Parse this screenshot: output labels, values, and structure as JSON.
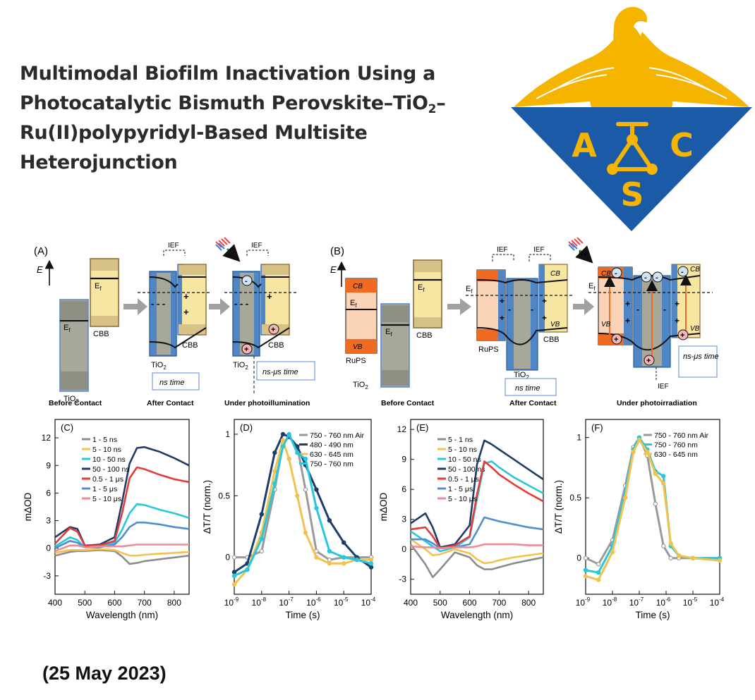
{
  "header": {
    "title_lines": [
      "Multimodal Biofilm Inactivation Using a",
      "Photocatalytic Bismuth Perovskite–TiO",
      "Ru(II)polypyridyl-Based Multisite",
      "Heterojunction"
    ],
    "title_sub": "2",
    "title_tail": "–",
    "date": "(25 May 2023)"
  },
  "logo": {
    "letters": [
      "A",
      "C",
      "S"
    ],
    "colors": {
      "gold": "#F5B400",
      "blue": "#1B5AA6"
    }
  },
  "schemes": {
    "A": {
      "label": "(A)",
      "axis": "E",
      "ef": "E",
      "ef_sub": "f",
      "iefs": [
        "IEF",
        "IEF"
      ],
      "tio2": "TiO",
      "sub2": "2",
      "cbb": "CBB",
      "stages": [
        "Before Contact",
        "After Contact",
        "Under photoillumination"
      ],
      "times": [
        "ns time",
        "ns-μs time"
      ]
    },
    "B": {
      "label": "(B)",
      "axis": "E",
      "rups": "RuPS",
      "cb": "CB",
      "vb": "VB",
      "hv": "hv",
      "iefs": [
        "IEF",
        "IEF",
        "IEF"
      ],
      "stages": [
        "Before Contact",
        "After Contact",
        "Under photoirradiation"
      ],
      "times": [
        "ns time",
        "ns-μs time"
      ]
    }
  },
  "chart_data": [
    {
      "panel": "(C)",
      "type": "line",
      "xlabel": "Wavelength (nm)",
      "ylabel": "mΔOD",
      "xlim": [
        400,
        850
      ],
      "ylim": [
        -5,
        14
      ],
      "xticks": [
        400,
        500,
        600,
        700,
        800
      ],
      "yticks": [
        -3,
        0,
        3,
        6,
        9,
        12
      ],
      "x": [
        400,
        450,
        475,
        500,
        550,
        600,
        625,
        650,
        675,
        700,
        750,
        800,
        850
      ],
      "series": [
        {
          "name": "1 - 5 ns",
          "color": "#8c8c8c",
          "values": [
            -0.8,
            -0.4,
            -0.3,
            -0.3,
            -0.2,
            -0.3,
            -0.9,
            -1.7,
            -1.6,
            -1.4,
            -1.2,
            -1.0,
            -0.8
          ]
        },
        {
          "name": "5 - 10 ns",
          "color": "#f2c14e",
          "values": [
            -0.5,
            -0.2,
            -0.2,
            -0.2,
            -0.1,
            -0.2,
            -0.5,
            -0.8,
            -0.8,
            -0.7,
            -0.6,
            -0.5,
            -0.4
          ]
        },
        {
          "name": "10 - 50 ns",
          "color": "#28c7d9",
          "values": [
            0.2,
            1.2,
            0.9,
            0.1,
            0.2,
            0.6,
            2.0,
            3.8,
            4.8,
            4.7,
            4.2,
            3.8,
            3.3
          ]
        },
        {
          "name": "50 - 100 ns",
          "color": "#1f3c68",
          "values": [
            1.2,
            2.3,
            2.1,
            0.3,
            0.4,
            1.2,
            5.0,
            9.2,
            10.9,
            11.0,
            10.5,
            9.8,
            9.0
          ]
        },
        {
          "name": "0.5 - 1 μs",
          "color": "#e53b3b",
          "values": [
            0.5,
            2.2,
            1.8,
            0.3,
            0.3,
            0.8,
            3.8,
            7.6,
            8.8,
            8.6,
            8.0,
            7.5,
            7.2
          ]
        },
        {
          "name": "1 - 5 μs",
          "color": "#4f8fd1",
          "values": [
            0.0,
            0.8,
            0.6,
            0.1,
            0.1,
            0.4,
            1.2,
            2.3,
            2.8,
            2.8,
            2.6,
            2.3,
            2.1
          ]
        },
        {
          "name": "5 - 10 μs",
          "color": "#f08a96",
          "values": [
            -0.3,
            0.3,
            0.3,
            0.1,
            0.2,
            0.2,
            0.2,
            0.3,
            0.4,
            0.4,
            0.4,
            0.4,
            0.4
          ]
        }
      ]
    },
    {
      "panel": "(D)",
      "type": "line",
      "xlabel": "Time (s)",
      "ylabel": "ΔT/T (norm.)",
      "xscale": "log",
      "xlim": [
        1e-09,
        0.0001
      ],
      "ylim": [
        -0.3,
        1.12
      ],
      "xticks": [
        "10",
        "10",
        "10",
        "10",
        "10",
        "10"
      ],
      "xtick_exponents": [
        "-9",
        "-8",
        "-7",
        "-6",
        "-5",
        "-4"
      ],
      "yticks": [
        0.0,
        0.5,
        1.0
      ],
      "x": [
        1e-09,
        3e-09,
        1e-08,
        3e-08,
        6e-08,
        1e-07,
        2e-07,
        4e-07,
        1e-06,
        3e-06,
        1e-05,
        3e-05,
        0.0001
      ],
      "series": [
        {
          "name": "750 - 760 nm Air",
          "color": "#9a9a9a",
          "values": [
            0.0,
            0.0,
            0.05,
            0.55,
            0.92,
            0.98,
            0.9,
            0.55,
            0.05,
            -0.02,
            0.0,
            0.0,
            0.0
          ]
        },
        {
          "name": "480 - 490 nm",
          "color": "#1f3c68",
          "values": [
            -0.12,
            -0.05,
            0.35,
            0.85,
            1.0,
            0.98,
            0.9,
            0.75,
            0.55,
            0.3,
            0.12,
            0.0,
            -0.08
          ]
        },
        {
          "name": "630 - 645 nm",
          "color": "#f2c14e",
          "values": [
            -0.22,
            -0.1,
            0.2,
            0.7,
            0.95,
            0.8,
            0.5,
            0.2,
            0.0,
            -0.05,
            -0.05,
            -0.02,
            -0.02
          ]
        },
        {
          "name": "750 - 760 nm",
          "color": "#28c7d9",
          "values": [
            -0.15,
            -0.1,
            0.15,
            0.6,
            0.9,
            1.0,
            0.85,
            0.8,
            0.4,
            0.05,
            0.0,
            -0.02,
            -0.05
          ]
        }
      ]
    },
    {
      "panel": "(E)",
      "type": "line",
      "xlabel": "Wavelength (nm)",
      "ylabel": "mΔOD",
      "xlim": [
        400,
        850
      ],
      "ylim": [
        -4.5,
        13
      ],
      "xticks": [
        400,
        500,
        600,
        700,
        800
      ],
      "yticks": [
        -3,
        0,
        3,
        6,
        9,
        12
      ],
      "x": [
        400,
        450,
        475,
        500,
        550,
        600,
        625,
        650,
        675,
        700,
        750,
        800,
        850
      ],
      "series": [
        {
          "name": "5 - 1 ns",
          "color": "#8c8c8c",
          "values": [
            0.5,
            -1.5,
            -2.8,
            -2.0,
            -0.3,
            -0.8,
            -1.6,
            -2.0,
            -2.0,
            -1.8,
            -1.4,
            -1.1,
            -0.8
          ]
        },
        {
          "name": "5 - 10 ns",
          "color": "#f2c14e",
          "values": [
            1.0,
            0.0,
            -0.6,
            -0.5,
            0.0,
            -0.4,
            -1.0,
            -1.4,
            -1.3,
            -1.1,
            -0.8,
            -0.6,
            -0.4
          ]
        },
        {
          "name": "10 - 50 ns",
          "color": "#28c7d9",
          "values": [
            1.8,
            0.8,
            0.3,
            -0.2,
            0.2,
            1.2,
            5.0,
            8.6,
            8.8,
            8.2,
            7.2,
            6.4,
            5.6
          ]
        },
        {
          "name": "50 - 100 ns",
          "color": "#1f3c68",
          "values": [
            2.6,
            3.6,
            2.2,
            0.2,
            0.5,
            2.4,
            8.5,
            10.9,
            10.5,
            10.0,
            9.0,
            8.0,
            7.0
          ]
        },
        {
          "name": "0.5 - 1 μs",
          "color": "#e53b3b",
          "values": [
            2.0,
            2.2,
            1.3,
            0.1,
            0.4,
            1.3,
            5.5,
            8.8,
            8.2,
            7.5,
            6.5,
            5.6,
            4.8
          ]
        },
        {
          "name": "1 - 5 μs",
          "color": "#4f8fd1",
          "values": [
            1.0,
            1.0,
            0.6,
            0.1,
            0.2,
            0.5,
            1.8,
            3.2,
            3.0,
            2.8,
            2.5,
            2.2,
            2.0
          ]
        },
        {
          "name": "5 - 10 μs",
          "color": "#f08a96",
          "values": [
            0.3,
            0.2,
            0.2,
            0.1,
            0.2,
            0.2,
            0.3,
            0.5,
            0.5,
            0.5,
            0.5,
            0.4,
            0.4
          ]
        }
      ]
    },
    {
      "panel": "(F)",
      "type": "line",
      "xlabel": "Time (s)",
      "ylabel": "ΔT/T (norm.)",
      "xscale": "log",
      "xlim": [
        1e-09,
        0.0001
      ],
      "ylim": [
        -0.3,
        1.15
      ],
      "xticks": [
        "10",
        "10",
        "10",
        "10",
        "10",
        "10"
      ],
      "xtick_exponents": [
        "-9",
        "-8",
        "-7",
        "-6",
        "-5",
        "-4"
      ],
      "yticks": [
        0.0,
        0.5,
        1.0
      ],
      "x": [
        1e-09,
        3e-09,
        1e-08,
        3e-08,
        6e-08,
        1e-07,
        2e-07,
        4e-07,
        8e-07,
        1.5e-06,
        3e-06,
        1e-05,
        0.0001
      ],
      "series": [
        {
          "name": "750 - 760 nm Air",
          "color": "#9a9a9a",
          "values": [
            0.0,
            -0.05,
            0.15,
            0.6,
            0.92,
            1.0,
            0.85,
            0.45,
            0.1,
            0.0,
            0.0,
            0.0,
            0.0
          ]
        },
        {
          "name": "750 - 760 nm",
          "color": "#28c7d9",
          "values": [
            -0.1,
            -0.12,
            0.1,
            0.55,
            0.9,
            1.0,
            0.9,
            0.72,
            0.68,
            0.1,
            0.02,
            0.0,
            0.0
          ]
        },
        {
          "name": "630 - 645 nm",
          "color": "#f2c14e",
          "values": [
            -0.15,
            -0.18,
            0.05,
            0.5,
            0.88,
            0.98,
            0.88,
            0.7,
            0.62,
            0.12,
            0.02,
            0.0,
            -0.02
          ]
        }
      ]
    }
  ]
}
